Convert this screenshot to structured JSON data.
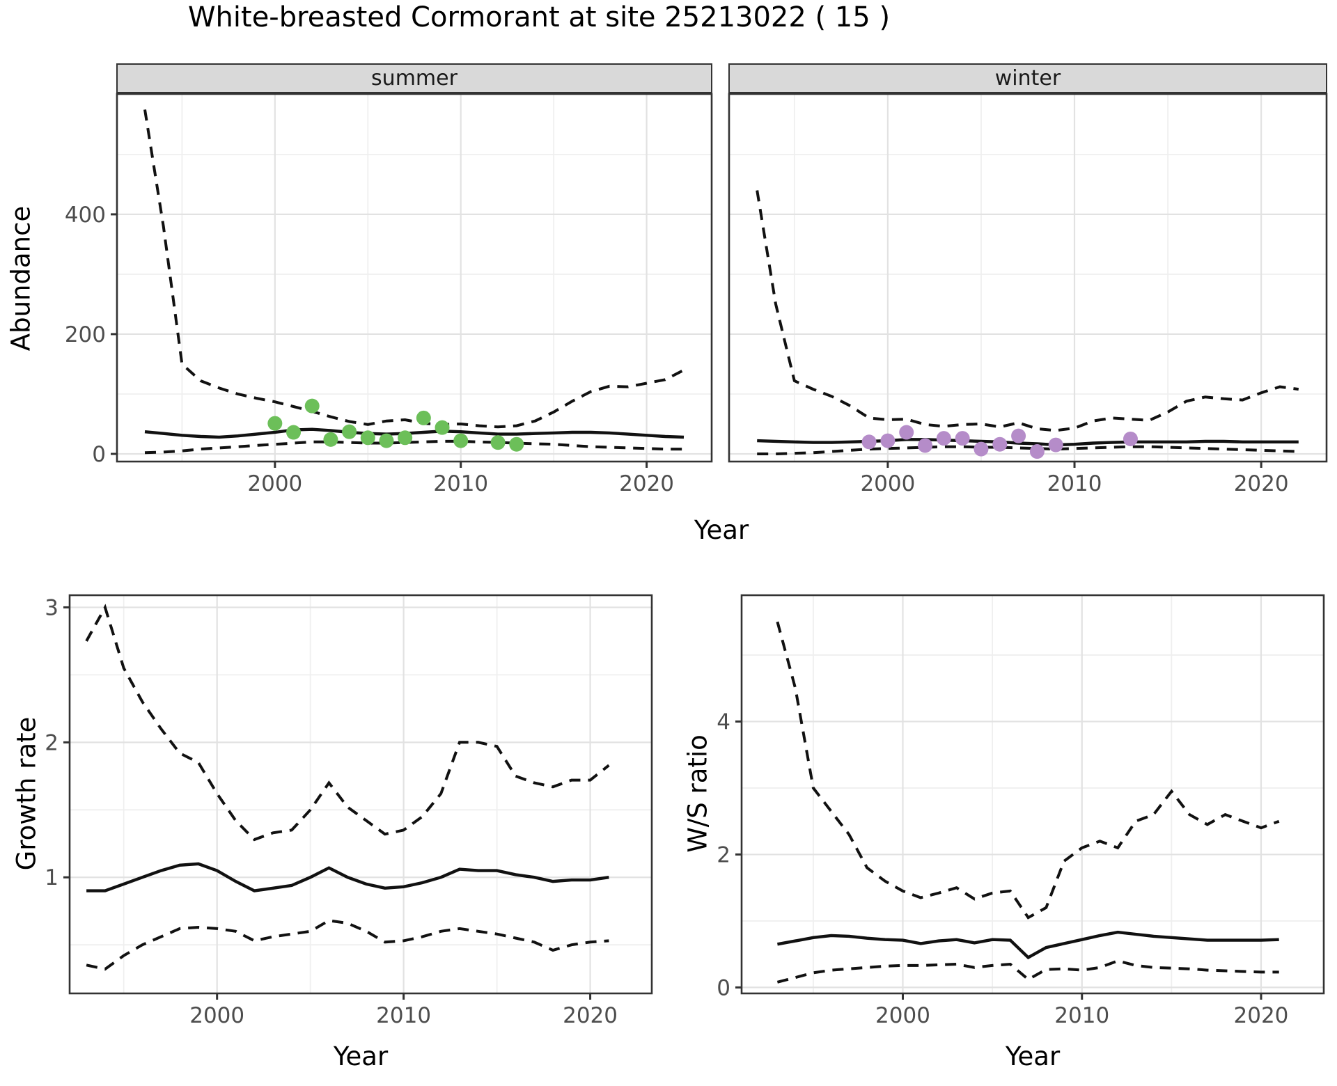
{
  "title": "White-breasted Cormorant at site 25213022 ( 15 )",
  "colors": {
    "summer_points": "#6CBF59",
    "winter_points": "#B58CC9",
    "line": "#111111",
    "strip_bg": "#D9D9D9",
    "tick_label": "#4D4D4D",
    "grid_major": "#E2E2E2",
    "grid_minor": "#EFEFEF",
    "panel_border": "#333333"
  },
  "chart_data": [
    {
      "type": "line",
      "id": "abundance",
      "ylabel": "Abundance",
      "xlabel": "Year",
      "legend_position": "none",
      "grid": true,
      "years": [
        1993,
        1994,
        1995,
        1996,
        1997,
        1998,
        1999,
        2000,
        2001,
        2002,
        2003,
        2004,
        2005,
        2006,
        2007,
        2008,
        2009,
        2010,
        2011,
        2012,
        2013,
        2014,
        2015,
        2016,
        2017,
        2018,
        2019,
        2020,
        2021,
        2022
      ],
      "xlim": [
        1991.5,
        2023.5
      ],
      "ylim": [
        -12.8,
        601
      ],
      "xticks": {
        "major": [
          2000,
          2010,
          2020
        ],
        "minor": [
          1995,
          2005,
          2015
        ]
      },
      "yticks": {
        "major": [
          0,
          200,
          400
        ],
        "minor": [
          100,
          300,
          500
        ]
      },
      "facets": [
        {
          "label": "summer",
          "point_color_key": "summer_points",
          "upper": [
            575,
            380,
            150,
            122,
            110,
            100,
            93,
            87,
            79,
            71,
            62,
            54,
            49,
            55,
            57,
            51,
            49,
            50,
            47,
            45,
            47,
            55,
            70,
            88,
            104,
            113,
            112,
            118,
            124,
            140
          ],
          "mean": [
            37,
            34,
            31,
            29,
            28,
            30,
            33,
            36,
            40,
            41,
            39,
            36,
            34,
            33,
            34,
            36,
            38,
            37,
            35,
            33,
            33,
            34,
            35,
            36,
            36,
            35,
            33,
            31,
            29,
            28
          ],
          "lower": [
            2,
            3,
            5,
            8,
            10,
            12,
            14,
            16,
            18,
            20,
            20,
            19,
            18,
            18,
            19,
            20,
            21,
            21,
            20,
            19,
            18,
            17,
            16,
            14,
            12,
            11,
            10,
            9,
            8,
            8
          ],
          "points": {
            "years": [
              2000,
              2001,
              2002,
              2003,
              2004,
              2005,
              2006,
              2007,
              2008,
              2009,
              2010,
              2012,
              2013
            ],
            "values": [
              51,
              36,
              80,
              24,
              37,
              27,
              22,
              27,
              60,
              44,
              22,
              19,
              16
            ]
          }
        },
        {
          "label": "winter",
          "point_color_key": "winter_points",
          "upper": [
            440,
            250,
            122,
            108,
            96,
            80,
            60,
            57,
            58,
            49,
            46,
            49,
            50,
            45,
            52,
            42,
            39,
            43,
            55,
            60,
            58,
            56,
            70,
            88,
            95,
            92,
            90,
            102,
            112,
            108
          ],
          "mean": [
            22,
            21,
            20,
            19,
            19,
            20,
            21,
            22,
            24,
            24,
            23,
            22,
            21,
            20,
            18,
            17,
            15,
            16,
            18,
            19,
            20,
            20,
            20,
            20,
            21,
            21,
            20,
            20,
            20,
            20
          ],
          "lower": [
            0,
            0,
            1,
            2,
            4,
            6,
            8,
            9,
            10,
            11,
            12,
            12,
            11,
            11,
            10,
            9,
            8,
            9,
            10,
            11,
            12,
            12,
            11,
            10,
            9,
            8,
            7,
            6,
            5,
            4
          ],
          "points": {
            "years": [
              1999,
              2000,
              2001,
              2002,
              2003,
              2004,
              2005,
              2006,
              2007,
              2008,
              2009,
              2013
            ],
            "values": [
              20,
              22,
              36,
              14,
              26,
              26,
              8,
              16,
              30,
              4,
              15,
              25
            ]
          }
        }
      ]
    },
    {
      "type": "line",
      "id": "growth_rate",
      "ylabel": "Growth rate",
      "xlabel": "Year",
      "grid": true,
      "years": [
        1993,
        1994,
        1995,
        1996,
        1997,
        1998,
        1999,
        2000,
        2001,
        2002,
        2003,
        2004,
        2005,
        2006,
        2007,
        2008,
        2009,
        2010,
        2011,
        2012,
        2013,
        2014,
        2015,
        2016,
        2017,
        2018,
        2019,
        2020,
        2021
      ],
      "xlim": [
        1992.1,
        2023.3
      ],
      "ylim": [
        0.14,
        3.09
      ],
      "xticks": {
        "major": [
          2000,
          2010,
          2020
        ],
        "minor": [
          1995,
          2005,
          2015
        ]
      },
      "yticks": {
        "major": [
          1,
          2,
          3
        ],
        "minor": [
          0.5,
          1.5,
          2.5
        ]
      },
      "upper": [
        2.75,
        3.0,
        2.55,
        2.3,
        2.1,
        1.92,
        1.85,
        1.62,
        1.42,
        1.28,
        1.33,
        1.35,
        1.5,
        1.7,
        1.52,
        1.42,
        1.32,
        1.35,
        1.45,
        1.62,
        2.0,
        2.0,
        1.97,
        1.75,
        1.7,
        1.67,
        1.72,
        1.72,
        1.83
      ],
      "mean": [
        0.9,
        0.9,
        0.95,
        1.0,
        1.05,
        1.09,
        1.1,
        1.05,
        0.97,
        0.9,
        0.92,
        0.94,
        1.0,
        1.07,
        1.0,
        0.95,
        0.92,
        0.93,
        0.96,
        1.0,
        1.06,
        1.05,
        1.05,
        1.02,
        1.0,
        0.97,
        0.98,
        0.98,
        1.0
      ],
      "lower": [
        0.35,
        0.32,
        0.42,
        0.5,
        0.56,
        0.62,
        0.63,
        0.62,
        0.6,
        0.53,
        0.56,
        0.58,
        0.6,
        0.68,
        0.66,
        0.6,
        0.52,
        0.53,
        0.56,
        0.6,
        0.62,
        0.6,
        0.58,
        0.55,
        0.52,
        0.46,
        0.5,
        0.52,
        0.53
      ]
    },
    {
      "type": "line",
      "id": "ws_ratio",
      "ylabel": "W/S ratio",
      "xlabel": "Year",
      "grid": true,
      "years": [
        1993,
        1994,
        1995,
        1996,
        1997,
        1998,
        1999,
        2000,
        2001,
        2002,
        2003,
        2004,
        2005,
        2006,
        2007,
        2008,
        2009,
        2010,
        2011,
        2012,
        2013,
        2014,
        2015,
        2016,
        2017,
        2018,
        2019,
        2020,
        2021
      ],
      "xlim": [
        1991.0,
        2023.5
      ],
      "ylim": [
        -0.09,
        5.9
      ],
      "xticks": {
        "major": [
          2000,
          2010,
          2020
        ],
        "minor": [
          1995,
          2005,
          2015
        ]
      },
      "yticks": {
        "major": [
          0,
          2,
          4
        ],
        "minor": [
          1,
          3,
          5
        ]
      },
      "upper": [
        5.5,
        4.5,
        3.0,
        2.65,
        2.3,
        1.8,
        1.6,
        1.45,
        1.35,
        1.42,
        1.5,
        1.33,
        1.42,
        1.45,
        1.05,
        1.2,
        1.9,
        2.1,
        2.2,
        2.1,
        2.5,
        2.6,
        2.95,
        2.6,
        2.45,
        2.6,
        2.5,
        2.4,
        2.5
      ],
      "mean": [
        0.65,
        0.7,
        0.75,
        0.78,
        0.77,
        0.74,
        0.72,
        0.71,
        0.66,
        0.7,
        0.72,
        0.67,
        0.72,
        0.71,
        0.45,
        0.6,
        0.66,
        0.72,
        0.78,
        0.83,
        0.8,
        0.77,
        0.75,
        0.73,
        0.71,
        0.71,
        0.71,
        0.71,
        0.72
      ],
      "lower": [
        0.08,
        0.15,
        0.22,
        0.26,
        0.28,
        0.3,
        0.32,
        0.33,
        0.33,
        0.34,
        0.35,
        0.3,
        0.33,
        0.35,
        0.12,
        0.27,
        0.28,
        0.26,
        0.3,
        0.4,
        0.33,
        0.3,
        0.29,
        0.28,
        0.26,
        0.25,
        0.24,
        0.23,
        0.23
      ]
    }
  ]
}
